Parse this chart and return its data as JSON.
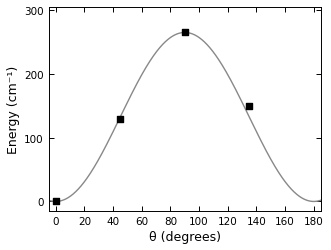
{
  "scatter_x": [
    0,
    45,
    90,
    135
  ],
  "scatter_y": [
    0,
    130,
    265,
    150
  ],
  "xlabel": "θ (degrees)",
  "ylabel": "Energy (cm⁻¹)",
  "xlim": [
    -5,
    185
  ],
  "ylim": [
    -15,
    305
  ],
  "xticks": [
    0,
    20,
    40,
    60,
    80,
    100,
    120,
    140,
    160,
    180
  ],
  "yticks": [
    0,
    100,
    200,
    300
  ],
  "fourier_A0": 132.5,
  "fourier_A2": -132.5,
  "line_color": "#888888",
  "scatter_color": "#000000",
  "background_color": "#ffffff",
  "label_fontsize": 9,
  "tick_fontsize": 7.5
}
